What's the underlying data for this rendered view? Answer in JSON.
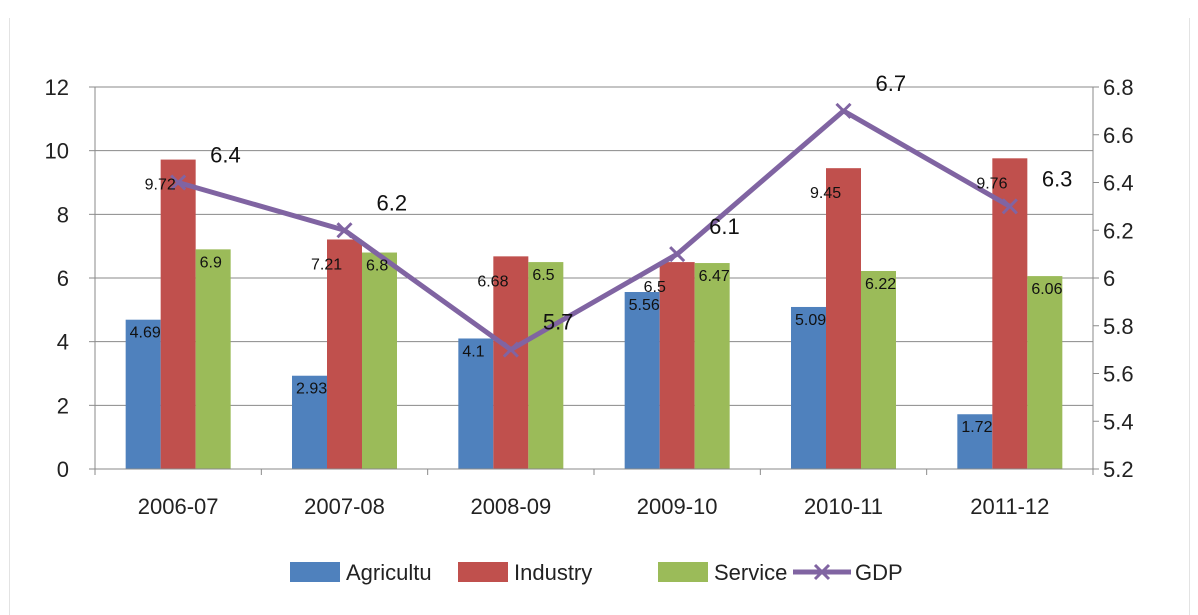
{
  "chart_data": {
    "type": "bar",
    "categories": [
      "2006-07",
      "2007-08",
      "2008-09",
      "2009-10",
      "2010-11",
      "2011-12"
    ],
    "series": [
      {
        "name": "Agricultu",
        "type": "bar",
        "axis": "left",
        "color": "#4f81bd",
        "values": [
          4.69,
          2.93,
          4.1,
          5.56,
          5.09,
          1.72
        ],
        "labels": [
          "4.69",
          "2.93",
          "4.1",
          "5.56",
          "5.09",
          "1.72"
        ]
      },
      {
        "name": "Industry",
        "type": "bar",
        "axis": "left",
        "color": "#c0504d",
        "values": [
          9.72,
          7.21,
          6.68,
          6.5,
          9.45,
          9.76
        ],
        "labels": [
          "9.72",
          "7.21",
          "6.68",
          "6.5",
          "9.45",
          "9.76"
        ]
      },
      {
        "name": "Service",
        "type": "bar",
        "axis": "left",
        "color": "#9bbb59",
        "values": [
          6.9,
          6.8,
          6.5,
          6.47,
          6.22,
          6.06
        ],
        "labels": [
          "6.9",
          "6.8",
          "6.5",
          "6.47",
          "6.22",
          "6.06"
        ]
      },
      {
        "name": "GDP",
        "type": "line",
        "axis": "right",
        "color": "#8064a2",
        "marker": "x",
        "values": [
          6.4,
          6.2,
          5.7,
          6.1,
          6.7,
          6.3
        ],
        "labels": [
          "6.4",
          "6.2",
          "5.7",
          "6.1",
          "6.7",
          "6.3"
        ]
      }
    ],
    "y_left": {
      "min": 0,
      "max": 12,
      "step": 2,
      "ticks": [
        "0",
        "2",
        "4",
        "6",
        "8",
        "10",
        "12"
      ]
    },
    "y_right": {
      "min": 5.2,
      "max": 6.8,
      "step": 0.2,
      "ticks": [
        "5.2",
        "5.4",
        "5.6",
        "5.8",
        "6",
        "6.2",
        "6.4",
        "6.6",
        "6.8"
      ]
    },
    "grid": true,
    "legend_position": "bottom",
    "title": "",
    "xlabel": "",
    "ylabel": ""
  }
}
